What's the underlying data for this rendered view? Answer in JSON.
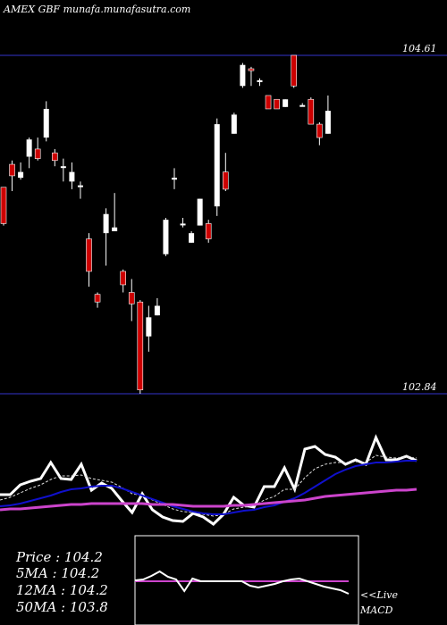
{
  "header": {
    "title": "AMEX  GBF munafa.munafasutra.com"
  },
  "price_levels": {
    "high_label": "104.61",
    "low_label": "102.84"
  },
  "stats": {
    "price_line": "Price   : 104.2",
    "ma5_line": "5MA : 104.2",
    "ma12_line": "12MA : 104.2",
    "ma50_line": "50MA : 103.8"
  },
  "macd": {
    "live_label": "<<Live",
    "macd_label": "MACD"
  },
  "colors": {
    "background": "#000000",
    "up_candle": "#ffffff",
    "down_candle": "#cc0000",
    "level_line": "#1a1a66",
    "ma_short": "#ffffff",
    "ma_mid": "#1010cc",
    "ma_long": "#cc44cc",
    "macd_line": "#cc44cc"
  },
  "chart_data": [
    {
      "type": "candlestick",
      "title": "AMEX  GBF munafa.munafasutra.com",
      "ylim": [
        102.84,
        104.61
      ],
      "reference_levels": [
        104.61,
        102.84
      ],
      "candles": [
        {
          "open": 103.92,
          "close": 103.73,
          "high": 103.92,
          "low": 103.72
        },
        {
          "open": 104.04,
          "close": 103.98,
          "high": 104.06,
          "low": 103.9
        },
        {
          "open": 103.97,
          "close": 104.0,
          "high": 104.05,
          "low": 103.96
        },
        {
          "open": 104.08,
          "close": 104.17,
          "high": 104.18,
          "low": 104.02
        },
        {
          "open": 104.12,
          "close": 104.07,
          "high": 104.18,
          "low": 104.06
        },
        {
          "open": 104.18,
          "close": 104.33,
          "high": 104.37,
          "low": 104.16
        },
        {
          "open": 104.1,
          "close": 104.06,
          "high": 104.12,
          "low": 104.03
        },
        {
          "open": 104.03,
          "close": 104.03,
          "high": 104.07,
          "low": 103.95
        },
        {
          "open": 103.95,
          "close": 104.0,
          "high": 104.05,
          "low": 103.91
        },
        {
          "open": 103.93,
          "close": 103.93,
          "high": 103.95,
          "low": 103.86
        },
        {
          "open": 103.65,
          "close": 103.48,
          "high": 103.68,
          "low": 103.4
        },
        {
          "open": 103.36,
          "close": 103.32,
          "high": 103.37,
          "low": 103.29
        },
        {
          "open": 103.68,
          "close": 103.78,
          "high": 103.81,
          "low": 103.51
        },
        {
          "open": 103.69,
          "close": 103.71,
          "high": 103.89,
          "low": 103.69
        },
        {
          "open": 103.48,
          "close": 103.41,
          "high": 103.49,
          "low": 103.37
        },
        {
          "open": 103.37,
          "close": 103.31,
          "high": 103.44,
          "low": 103.22
        },
        {
          "open": 103.32,
          "close": 102.86,
          "high": 103.33,
          "low": 102.84
        },
        {
          "open": 103.14,
          "close": 103.24,
          "high": 103.3,
          "low": 103.06
        },
        {
          "open": 103.25,
          "close": 103.3,
          "high": 103.34,
          "low": 103.25
        },
        {
          "open": 103.57,
          "close": 103.75,
          "high": 103.76,
          "low": 103.56
        },
        {
          "open": 103.96,
          "close": 103.97,
          "high": 104.02,
          "low": 103.91
        },
        {
          "open": 103.73,
          "close": 103.73,
          "high": 103.76,
          "low": 103.71
        },
        {
          "open": 103.63,
          "close": 103.68,
          "high": 103.69,
          "low": 103.63
        },
        {
          "open": 103.72,
          "close": 103.86,
          "high": 103.86,
          "low": 103.72
        },
        {
          "open": 103.73,
          "close": 103.65,
          "high": 103.75,
          "low": 103.63
        },
        {
          "open": 103.82,
          "close": 104.25,
          "high": 104.28,
          "low": 103.77
        },
        {
          "open": 104.0,
          "close": 103.91,
          "high": 104.1,
          "low": 103.9
        },
        {
          "open": 104.2,
          "close": 104.3,
          "high": 104.31,
          "low": 104.2
        },
        {
          "open": 104.45,
          "close": 104.56,
          "high": 104.57,
          "low": 104.44
        },
        {
          "open": 104.54,
          "close": 104.53,
          "high": 104.55,
          "low": 104.45
        },
        {
          "open": 104.47,
          "close": 104.48,
          "high": 104.49,
          "low": 104.45
        },
        {
          "open": 104.4,
          "close": 104.33,
          "high": 104.4,
          "low": 104.33
        },
        {
          "open": 104.38,
          "close": 104.33,
          "high": 104.38,
          "low": 104.33
        },
        {
          "open": 104.34,
          "close": 104.38,
          "high": 104.38,
          "low": 104.34
        },
        {
          "open": 104.61,
          "close": 104.45,
          "high": 104.61,
          "low": 104.44
        },
        {
          "open": 104.35,
          "close": 104.35,
          "high": 104.36,
          "low": 104.35
        },
        {
          "open": 104.38,
          "close": 104.25,
          "high": 104.39,
          "low": 104.25
        },
        {
          "open": 104.25,
          "close": 104.18,
          "high": 104.26,
          "low": 104.14
        },
        {
          "open": 104.2,
          "close": 104.32,
          "high": 104.4,
          "low": 104.2
        }
      ]
    },
    {
      "type": "line",
      "series": [
        {
          "color": "#ffffff",
          "values": [
            6,
            6,
            17,
            21,
            24,
            42,
            24,
            23,
            40,
            11,
            19,
            13,
            -1,
            -14,
            7,
            -11,
            -19,
            -23,
            -24,
            -15,
            -19,
            -27,
            -16,
            3,
            -6,
            -8,
            15,
            15,
            36,
            12,
            57,
            60,
            51,
            48,
            40,
            45,
            40,
            70,
            45,
            45,
            49,
            44
          ]
        },
        {
          "color": "#dddddd",
          "values": [
            0,
            3,
            8,
            13,
            17,
            23,
            27,
            27,
            28,
            24,
            22,
            20,
            14,
            7,
            5,
            0,
            -5,
            -10,
            -13,
            -14,
            -16,
            -18,
            -16,
            -10,
            -8,
            -7,
            0,
            4,
            12,
            12,
            25,
            35,
            40,
            42,
            42,
            43,
            42,
            50,
            48,
            47,
            48,
            47
          ]
        },
        {
          "color": "#1010cc",
          "values": [
            -7,
            -6,
            -4,
            -1,
            2,
            5,
            9,
            12,
            13,
            15,
            16,
            16,
            13,
            9,
            5,
            1,
            -3,
            -7,
            -10,
            -13,
            -15,
            -16,
            -16,
            -14,
            -12,
            -11,
            -8,
            -6,
            -2,
            2,
            8,
            15,
            22,
            29,
            34,
            38,
            40,
            42,
            42,
            43,
            44,
            44
          ]
        },
        {
          "color": "#cc44cc",
          "values": [
            -11,
            -10,
            -10,
            -9,
            -8,
            -7,
            -6,
            -5,
            -5,
            -4,
            -4,
            -4,
            -4,
            -4,
            -4,
            -5,
            -5,
            -5,
            -6,
            -7,
            -7,
            -7,
            -7,
            -6,
            -6,
            -5,
            -4,
            -3,
            -2,
            -1,
            0,
            2,
            4,
            5,
            6,
            7,
            8,
            9,
            10,
            11,
            11,
            12
          ]
        }
      ]
    },
    {
      "type": "line",
      "title": "MACD",
      "series": [
        {
          "color": "#ffffff",
          "values": [
            0.2,
            0.4,
            1.2,
            2.2,
            1.0,
            0.4,
            -2.2,
            0.6,
            0.0,
            0.0,
            0.0,
            0.0,
            0.0,
            0.0,
            -1.0,
            -1.4,
            -1.0,
            -0.6,
            0.0,
            0.4,
            0.6,
            0.0,
            -0.6,
            -1.2,
            -1.6,
            -2.0,
            -2.8
          ]
        },
        {
          "color": "#cc44cc",
          "values": [
            0,
            0,
            0,
            0,
            0,
            0,
            0,
            0,
            0,
            0,
            0,
            0,
            0,
            0,
            0,
            0,
            0,
            0,
            0,
            0,
            0,
            0,
            0,
            0,
            0,
            0,
            0
          ]
        }
      ]
    }
  ]
}
